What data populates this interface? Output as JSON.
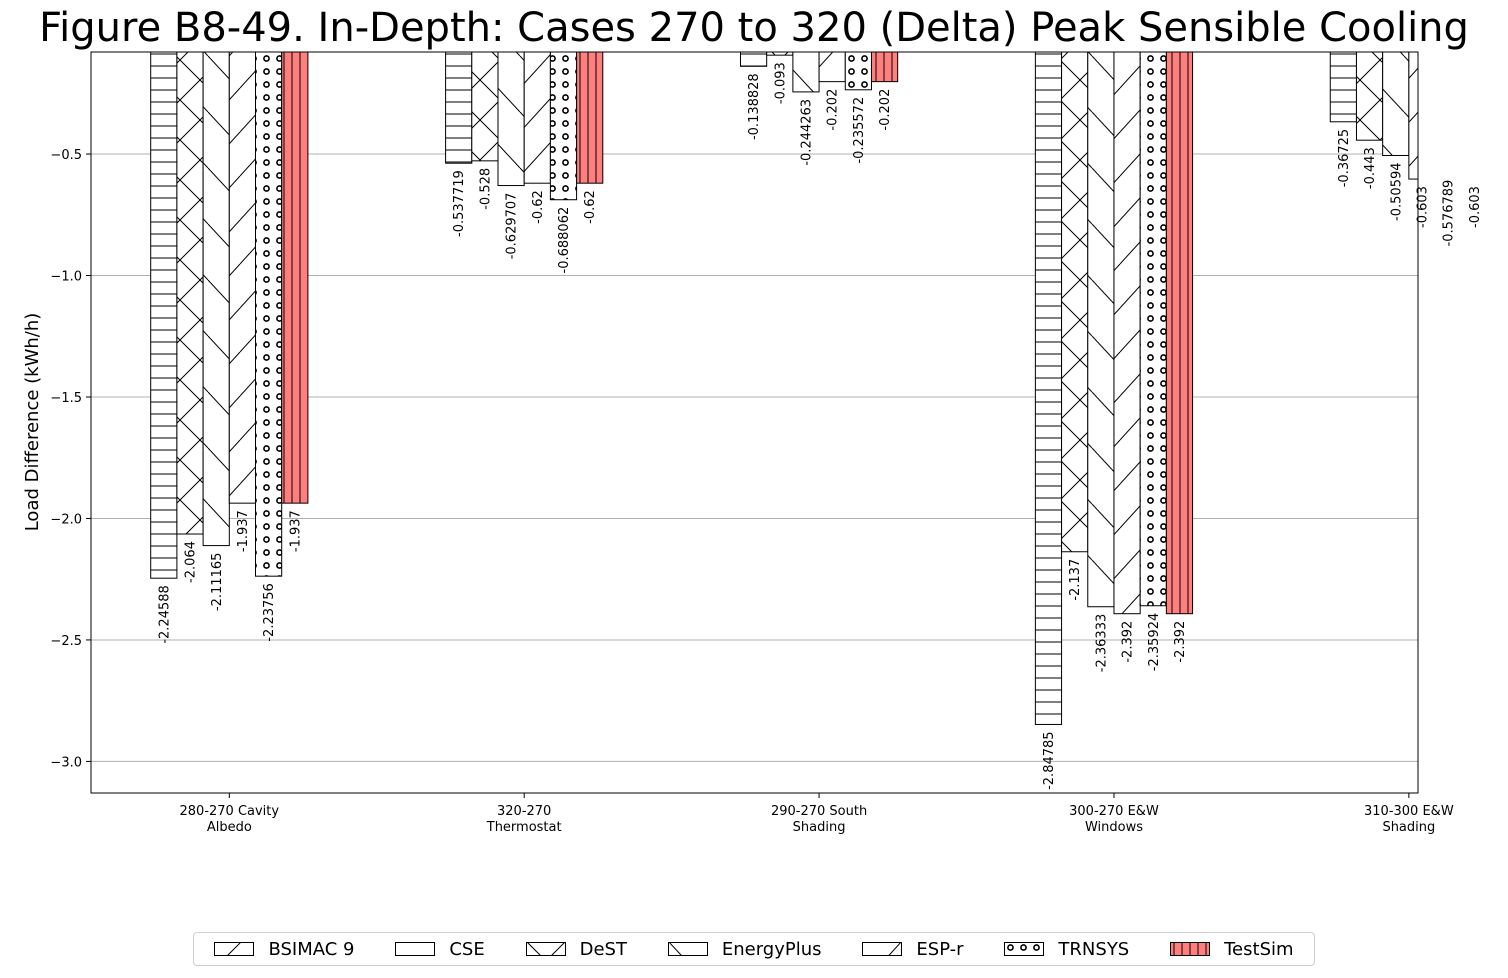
{
  "chart_data": {
    "type": "bar",
    "title": "Figure B8-49. In-Depth: Cases 270 to 320 (Delta) Peak Sensible Cooling",
    "xlabel": "",
    "ylabel": "Load Difference (kWh/h)",
    "ylim": [
      -3.13,
      -0.08
    ],
    "yticks": [
      -0.5,
      -1.0,
      -1.5,
      -2.0,
      -2.5,
      -3.0
    ],
    "ytick_labels": [
      "−0.5",
      "−1.0",
      "−1.5",
      "−2.0",
      "−2.5",
      "−3.0"
    ],
    "grid": "horizontal",
    "legend_position": "bottom",
    "categories": [
      "280-270 Cavity\nAlbedo",
      "320-270\nThermostat",
      "290-270 South\nShading",
      "300-270 E&W\nWindows",
      "310-300 E&W\nShading"
    ],
    "series": [
      {
        "name": "CSE",
        "hatch": "horizontal",
        "color": "#ffffff",
        "values": [
          -2.24588,
          -0.537719,
          -0.138828,
          -2.84785,
          -0.36725
        ],
        "labels": [
          "-2.24588",
          "-0.537719",
          "-0.138828",
          "-2.84785",
          "-0.36725"
        ]
      },
      {
        "name": "DeST",
        "hatch": "cross",
        "color": "#ffffff",
        "values": [
          -2.064,
          -0.528,
          -0.093,
          -2.137,
          -0.443
        ],
        "labels": [
          "-2.064",
          "-0.528",
          "-0.093",
          "-2.137",
          "-0.443"
        ]
      },
      {
        "name": "EnergyPlus",
        "hatch": "backslash",
        "color": "#ffffff",
        "values": [
          -2.11165,
          -0.629707,
          -0.244263,
          -2.36333,
          -0.50594
        ],
        "labels": [
          "-2.11165",
          "-0.629707",
          "-0.244263",
          "-2.36333",
          "-0.50594"
        ]
      },
      {
        "name": "ESP-r",
        "hatch": "slash",
        "color": "#ffffff",
        "values": [
          -1.937,
          -0.62,
          -0.202,
          -2.392,
          -0.603
        ],
        "labels": [
          "-1.937",
          "-0.62",
          "-0.202",
          "-2.392",
          "-0.603"
        ]
      },
      {
        "name": "TRNSYS",
        "hatch": "circles",
        "color": "#ffffff",
        "values": [
          -2.23756,
          -0.688062,
          -0.235572,
          -2.35924,
          -0.576789
        ],
        "labels": [
          "-2.23756",
          "-0.688062",
          "-0.235572",
          "-2.35924",
          "-0.576789"
        ]
      },
      {
        "name": "TestSim",
        "hatch": "vertical",
        "color": "#ff7f7f",
        "values": [
          -1.937,
          -0.62,
          -0.202,
          -2.392,
          -0.603
        ],
        "labels": [
          "-1.937",
          "-0.62",
          "-0.202",
          "-2.392",
          "-0.603"
        ]
      }
    ],
    "legend": [
      {
        "name": "BSIMAC 9",
        "hatch": "slash-sparse",
        "color": "#ffffff"
      },
      {
        "name": "CSE",
        "hatch": "none",
        "color": "#ffffff"
      },
      {
        "name": "DeST",
        "hatch": "cross",
        "color": "#ffffff"
      },
      {
        "name": "EnergyPlus",
        "hatch": "backslash",
        "color": "#ffffff"
      },
      {
        "name": "ESP-r",
        "hatch": "slash",
        "color": "#ffffff"
      },
      {
        "name": "TRNSYS",
        "hatch": "circles",
        "color": "#ffffff"
      },
      {
        "name": "TestSim",
        "hatch": "vertical",
        "color": "#ff7f7f"
      }
    ]
  }
}
